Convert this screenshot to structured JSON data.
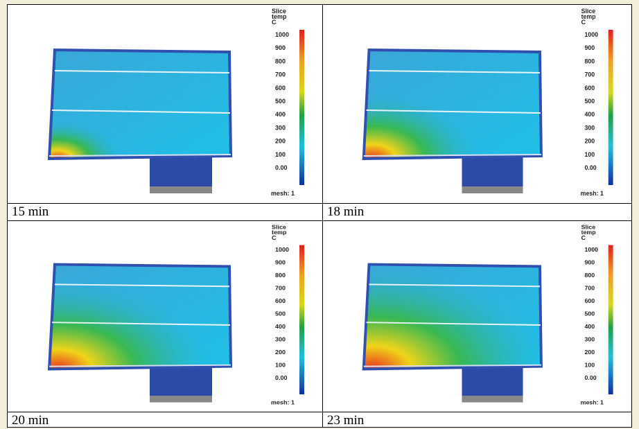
{
  "panels": [
    {
      "caption": "15 min"
    },
    {
      "caption": "18 min"
    },
    {
      "caption": "20 min"
    },
    {
      "caption": "23 min"
    }
  ],
  "legend": {
    "title": [
      "Slice",
      "temp",
      "C"
    ],
    "labels": [
      "1000",
      "900",
      "800",
      "700",
      "600",
      "500",
      "400",
      "300",
      "200",
      "100",
      "0.00"
    ],
    "mesh": "mesh: 1"
  }
}
